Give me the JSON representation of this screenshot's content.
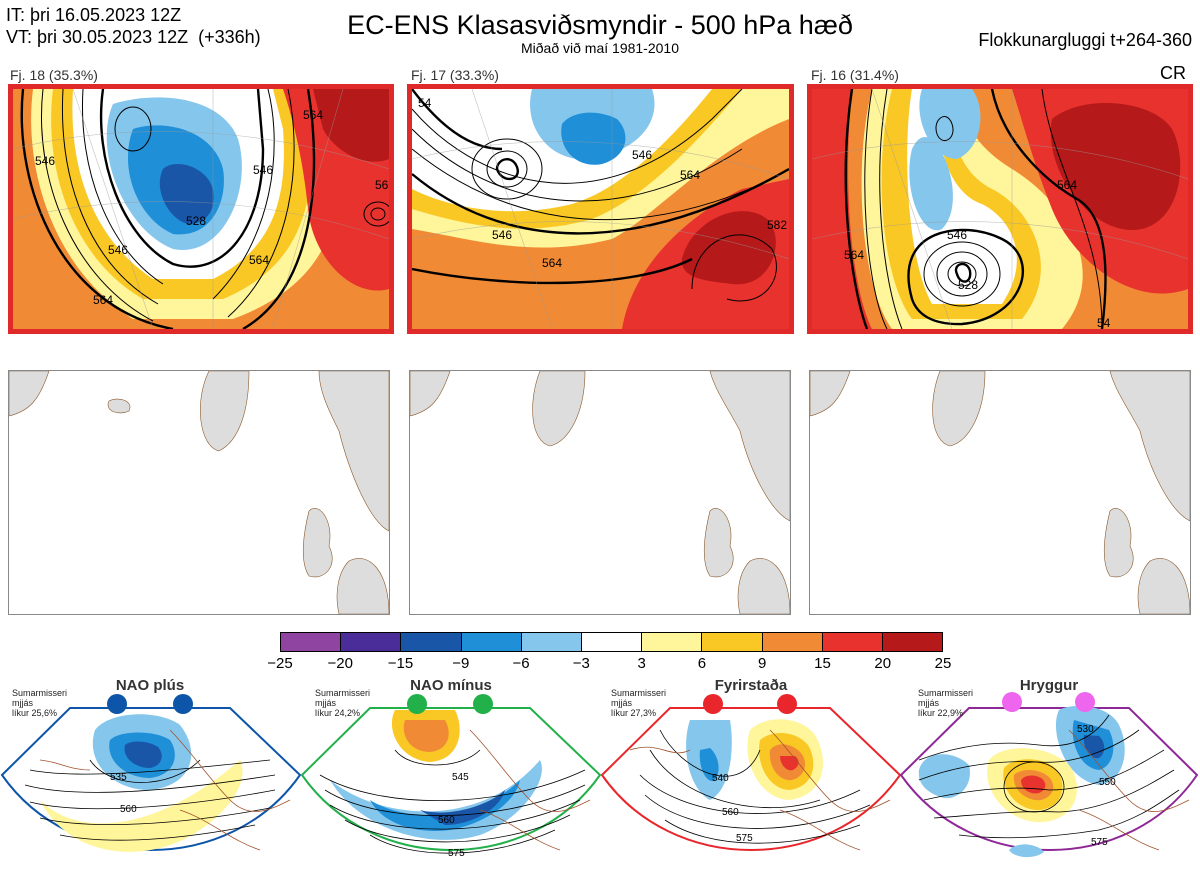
{
  "header": {
    "it_line": "IT: þri 16.05.2023 12Z",
    "vt_line": "VT: þri 30.05.2023 12Z  (+336h)",
    "title": "EC-ENS Klasasviðsmyndir - 500 hPa hæð",
    "subtitle": "Miðað við maí 1981-2010",
    "window": "Flokkunargluggi t+264-360",
    "cr": "CR"
  },
  "panels": [
    {
      "label": "Fj. 18 (35.3%)",
      "contours": [
        "546",
        "546",
        "528",
        "564",
        "564",
        "564",
        "56",
        "546"
      ]
    },
    {
      "label": "Fj. 17 (33.3%)",
      "contours": [
        "546",
        "546",
        "564",
        "564",
        "582",
        "54"
      ]
    },
    {
      "label": "Fj. 16 (31.4%)",
      "contours": [
        "546",
        "528",
        "564",
        "564",
        "54"
      ]
    }
  ],
  "colorbar": {
    "ticks": [
      "−25",
      "−20",
      "−15",
      "−9",
      "−6",
      "−3",
      "3",
      "6",
      "9",
      "15",
      "20",
      "25"
    ],
    "colors": [
      "#8e44a0",
      "#4b2d9a",
      "#1a56a8",
      "#1f8fd8",
      "#85c6ec",
      "#ffffff",
      "#fff59a",
      "#f9c825",
      "#f08a35",
      "#e8322d",
      "#b51919"
    ]
  },
  "regimes": [
    {
      "name": "NAO plús",
      "note": [
        "Sumarmisseri",
        "mjjás",
        "líkur 25,6%"
      ],
      "dot_color": "#0d55a8",
      "border": "#0d55a8",
      "labels": [
        "535",
        "560"
      ]
    },
    {
      "name": "NAO mínus",
      "note": [
        "Sumarmisseri",
        "mjjás",
        "líkur 24,2%"
      ],
      "dot_color": "#22b04a",
      "border": "#22b04a",
      "labels": [
        "545",
        "560",
        "575"
      ]
    },
    {
      "name": "Fyrirstaða",
      "note": [
        "Sumarmisseri",
        "mjjás",
        "líkur 27,3%"
      ],
      "dot_color": "#e8262b",
      "border": "#e8262b",
      "labels": [
        "540",
        "560",
        "575"
      ]
    },
    {
      "name": "Hryggur",
      "note": [
        "Sumarmisseri",
        "mjjás",
        "líkur 22,9%"
      ],
      "dot_color": "#ee66ee",
      "border": "#8e2896",
      "labels": [
        "530",
        "550",
        "575"
      ]
    }
  ]
}
